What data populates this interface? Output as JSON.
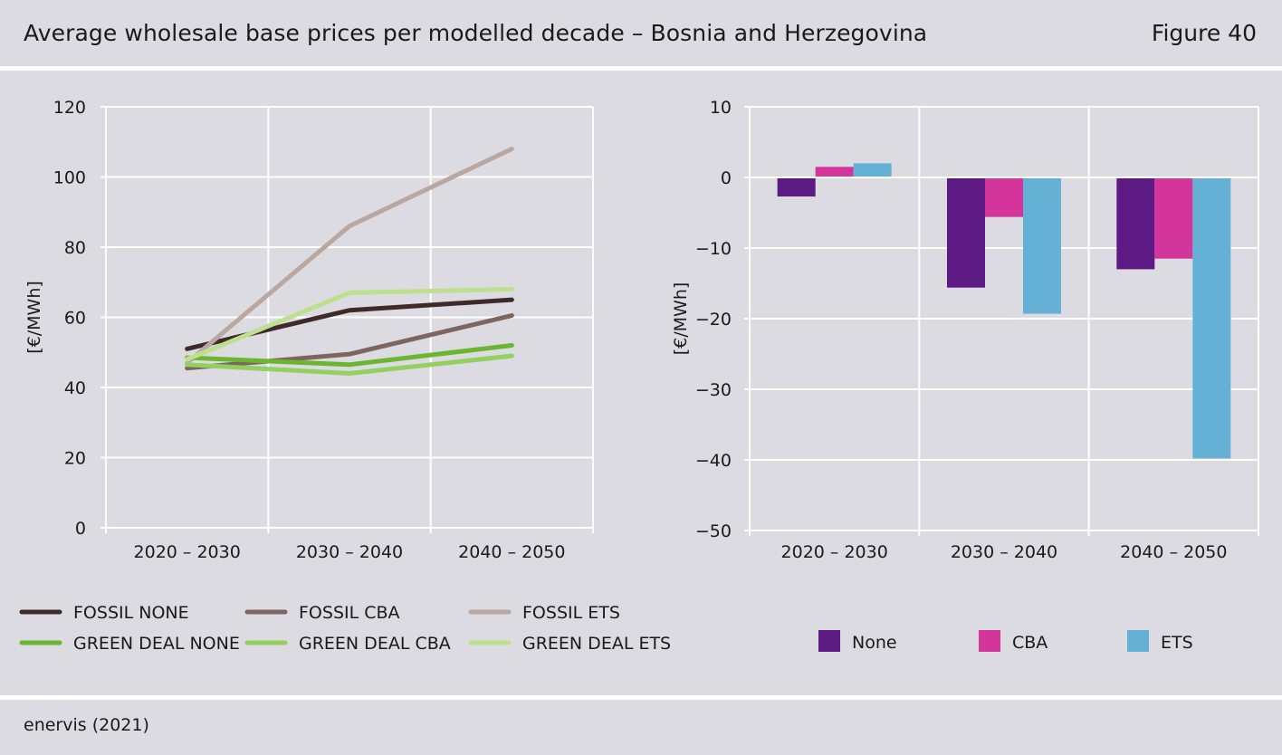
{
  "header": {
    "title": "Average wholesale base prices per modelled decade – Bosnia and Herzegovina",
    "figure": "Figure 40"
  },
  "footer": {
    "source": "enervis (2021)"
  },
  "chart_data": [
    {
      "type": "line",
      "ylabel": "[€/MWh]",
      "ylim": [
        0,
        120
      ],
      "yticks": [
        0,
        20,
        40,
        60,
        80,
        100,
        120
      ],
      "categories": [
        "2020 – 2030",
        "2030 – 2040",
        "2040 – 2050"
      ],
      "grid": true,
      "legend_position": "bottom",
      "series": [
        {
          "name": "FOSSIL NONE",
          "color": "#3f2a2a",
          "values": [
            51,
            62,
            65
          ]
        },
        {
          "name": "FOSSIL CBA",
          "color": "#7d6560",
          "values": [
            45.5,
            49.5,
            60.5
          ]
        },
        {
          "name": "FOSSIL ETS",
          "color": "#b9a8a2",
          "values": [
            47,
            86,
            108
          ]
        },
        {
          "name": "GREEN DEAL NONE",
          "color": "#6ab72f",
          "values": [
            48.5,
            46.5,
            52
          ]
        },
        {
          "name": "GREEN DEAL CBA",
          "color": "#94d060",
          "values": [
            46.5,
            44,
            49
          ]
        },
        {
          "name": "GREEN DEAL ETS",
          "color": "#bde08f",
          "values": [
            48,
            67,
            68
          ]
        }
      ]
    },
    {
      "type": "bar",
      "ylabel": "[€/MWh]",
      "ylim": [
        -50,
        10
      ],
      "yticks": [
        -50,
        -40,
        -30,
        -20,
        -10,
        0,
        10
      ],
      "ytick_labels": [
        "−50",
        "−40",
        "−30",
        "−20",
        "−10",
        "0",
        "10"
      ],
      "categories": [
        "2020 – 2030",
        "2030 – 2040",
        "2040 – 2050"
      ],
      "grid": true,
      "legend_position": "bottom",
      "series": [
        {
          "name": "None",
          "color": "#5d1a85",
          "values": [
            -2.7,
            -15.6,
            -13
          ]
        },
        {
          "name": "CBA",
          "color": "#d3359a",
          "values": [
            1.5,
            -5.6,
            -11.5
          ]
        },
        {
          "name": "ETS",
          "color": "#65b1d6",
          "values": [
            2,
            -19.3,
            -39.8
          ]
        }
      ]
    }
  ]
}
